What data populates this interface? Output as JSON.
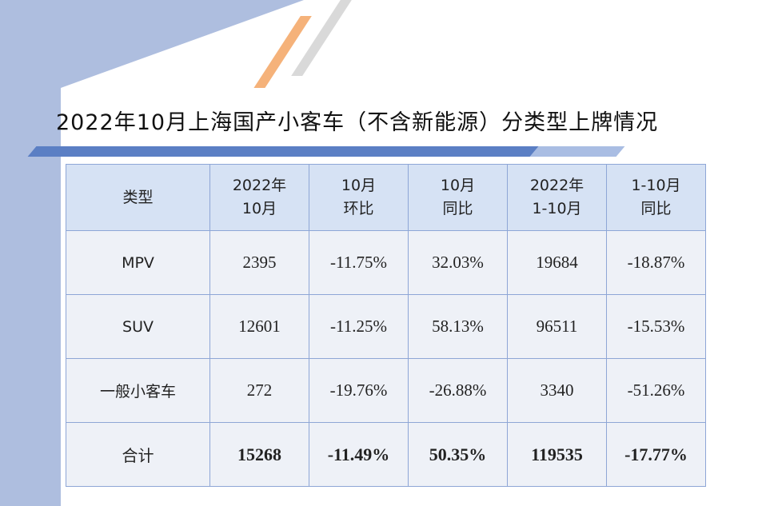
{
  "title": "2022年10月上海国产小客车（不含新能源）分类型上牌情况",
  "colors": {
    "accent": "#5b7fc4",
    "header_fill": "#d6e2f4",
    "cell_fill": "#eef1f7",
    "border": "#8ea6d6",
    "orange_stripe": "#f5b27a"
  },
  "table": {
    "headers": [
      [
        "类型"
      ],
      [
        "2022年",
        "10月"
      ],
      [
        "10月",
        "环比"
      ],
      [
        "10月",
        "同比"
      ],
      [
        "2022年",
        "1-10月"
      ],
      [
        "1-10月",
        "同比"
      ]
    ],
    "rows": [
      [
        "MPV",
        "2395",
        "-11.75%",
        "32.03%",
        "19684",
        "-18.87%"
      ],
      [
        "SUV",
        "12601",
        "-11.25%",
        "58.13%",
        "96511",
        "-15.53%"
      ],
      [
        "一般小客车",
        "272",
        "-19.76%",
        "-26.88%",
        "3340",
        "-51.26%"
      ],
      [
        "合计",
        "15268",
        "-11.49%",
        "50.35%",
        "119535",
        "-17.77%"
      ]
    ]
  }
}
